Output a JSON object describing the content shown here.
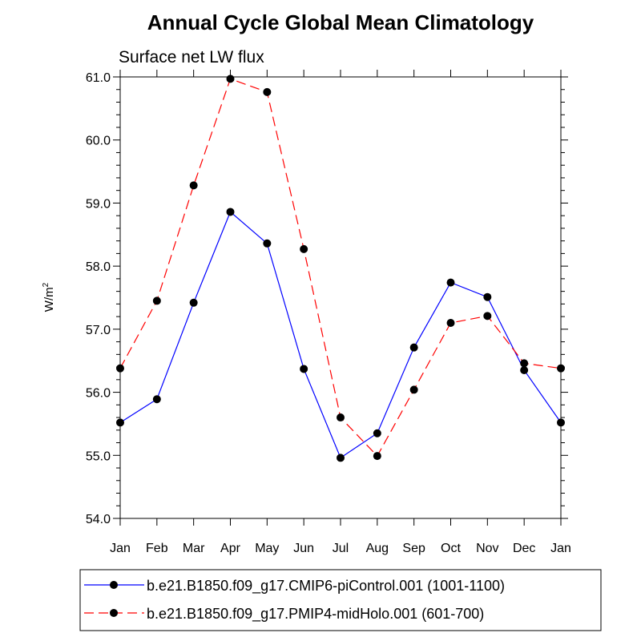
{
  "chart_data": {
    "type": "line",
    "title": "Annual Cycle Global Mean Climatology",
    "subtitle": "Surface net LW flux",
    "ylabel": "W/m",
    "ylabel_superscript": "2",
    "xlabel": "",
    "categories": [
      "Jan",
      "Feb",
      "Mar",
      "Apr",
      "May",
      "Jun",
      "Jul",
      "Aug",
      "Sep",
      "Oct",
      "Nov",
      "Dec",
      "Jan"
    ],
    "ylim": [
      54.0,
      61.0
    ],
    "yticks": [
      "54.0",
      "55.0",
      "56.0",
      "57.0",
      "58.0",
      "59.0",
      "60.0",
      "61.0"
    ],
    "grid": false,
    "legend_position": "bottom",
    "series": [
      {
        "name": "b.e21.B1850.f09_g17.CMIP6-piControl.001 (1001-1100)",
        "color": "#0000ff",
        "dash": "solid",
        "marker": "filled-circle",
        "values": [
          55.52,
          55.89,
          57.42,
          58.86,
          58.36,
          56.37,
          54.96,
          55.35,
          56.71,
          57.74,
          57.51,
          56.35,
          55.52
        ]
      },
      {
        "name": "b.e21.B1850.f09_g17.PMIP4-midHolo.001 (601-700)",
        "color": "#ff0000",
        "dash": "dashed",
        "marker": "filled-circle",
        "values": [
          56.38,
          57.45,
          59.28,
          60.97,
          60.76,
          58.27,
          55.6,
          54.99,
          56.04,
          57.1,
          57.21,
          56.46,
          56.38
        ]
      }
    ]
  }
}
